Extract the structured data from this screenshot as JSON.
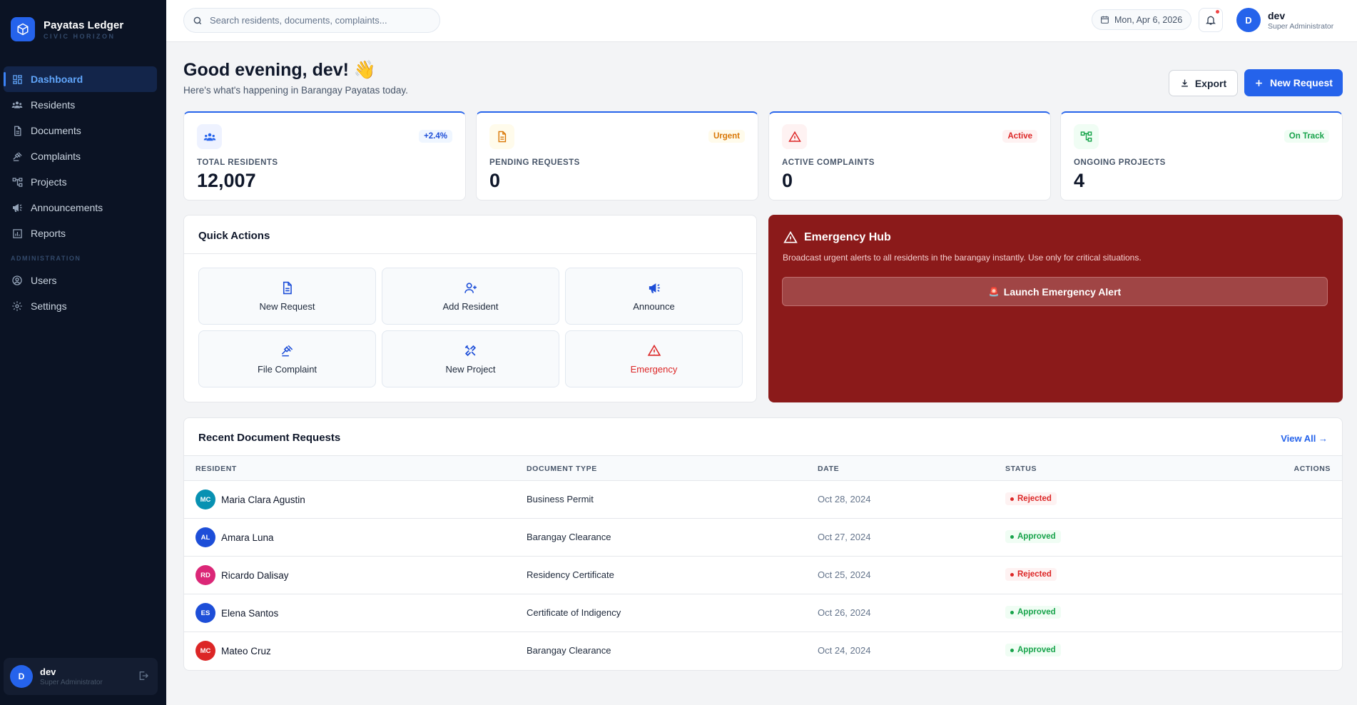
{
  "brand": {
    "name": "Payatas Ledger",
    "subtitle": "CIVIC HORIZON"
  },
  "sidebar": {
    "items": [
      {
        "label": "Dashboard",
        "icon": "dashboard-icon",
        "active": true
      },
      {
        "label": "Residents",
        "icon": "users-icon"
      },
      {
        "label": "Documents",
        "icon": "document-icon"
      },
      {
        "label": "Complaints",
        "icon": "gavel-icon"
      },
      {
        "label": "Projects",
        "icon": "hierarchy-icon"
      },
      {
        "label": "Announcements",
        "icon": "megaphone-icon"
      },
      {
        "label": "Reports",
        "icon": "chart-icon"
      }
    ],
    "admin_section": "ADMINISTRATION",
    "admin_items": [
      {
        "label": "Users",
        "icon": "user-circle-icon"
      },
      {
        "label": "Settings",
        "icon": "gear-icon"
      }
    ],
    "user": {
      "initial": "D",
      "name": "dev",
      "role": "Super Administrator"
    }
  },
  "topbar": {
    "search_placeholder": "Search residents, documents, complaints...",
    "date": "Mon, Apr 6, 2026",
    "user": {
      "initial": "D",
      "name": "dev",
      "role": "Super Administrator"
    }
  },
  "header": {
    "greeting": "Good evening, dev! 👋",
    "subtitle": "Here's what's happening in Barangay Payatas today.",
    "export_label": "Export",
    "new_request_label": "New Request"
  },
  "stats": [
    {
      "label": "TOTAL RESIDENTS",
      "value": "12,007",
      "badge": "+2.4%",
      "icon": "users-icon"
    },
    {
      "label": "PENDING REQUESTS",
      "value": "0",
      "badge": "Urgent",
      "icon": "document-icon"
    },
    {
      "label": "ACTIVE COMPLAINTS",
      "value": "0",
      "badge": "Active",
      "icon": "warning-icon"
    },
    {
      "label": "ONGOING PROJECTS",
      "value": "4",
      "badge": "On Track",
      "icon": "hierarchy-icon"
    }
  ],
  "quick_actions": {
    "title": "Quick Actions",
    "items": [
      {
        "label": "New Request",
        "icon": "document-icon"
      },
      {
        "label": "Add Resident",
        "icon": "user-plus-icon"
      },
      {
        "label": "Announce",
        "icon": "megaphone-icon"
      },
      {
        "label": "File Complaint",
        "icon": "gavel-icon"
      },
      {
        "label": "New Project",
        "icon": "tools-icon"
      },
      {
        "label": "Emergency",
        "icon": "warning-icon"
      }
    ]
  },
  "emergency": {
    "title": "Emergency Hub",
    "description": "Broadcast urgent alerts to all residents in the barangay instantly. Use only for critical situations.",
    "button_label": "Launch Emergency Alert",
    "button_emoji": "🚨"
  },
  "recent": {
    "title": "Recent Document Requests",
    "view_all": "View All →",
    "columns": [
      "RESIDENT",
      "DOCUMENT TYPE",
      "DATE",
      "STATUS",
      "ACTIONS"
    ],
    "rows": [
      {
        "initials": "MC",
        "color": "#0891b2",
        "name": "Maria Clara Agustin",
        "doc": "Business Permit",
        "date": "Oct 28, 2024",
        "status": "Rejected"
      },
      {
        "initials": "AL",
        "color": "#1d4ed8",
        "name": "Amara Luna",
        "doc": "Barangay Clearance",
        "date": "Oct 27, 2024",
        "status": "Approved"
      },
      {
        "initials": "RD",
        "color": "#db2777",
        "name": "Ricardo Dalisay",
        "doc": "Residency Certificate",
        "date": "Oct 25, 2024",
        "status": "Rejected"
      },
      {
        "initials": "ES",
        "color": "#1d4ed8",
        "name": "Elena Santos",
        "doc": "Certificate of Indigency",
        "date": "Oct 26, 2024",
        "status": "Approved"
      },
      {
        "initials": "MC",
        "color": "#dc2626",
        "name": "Mateo Cruz",
        "doc": "Barangay Clearance",
        "date": "Oct 24, 2024",
        "status": "Approved"
      }
    ]
  },
  "colors": {
    "accent": "#2563eb",
    "sidebar_bg": "#0b1324",
    "emergency_bg": "#8b1a1a",
    "approved": "#16a34a",
    "rejected": "#dc2626"
  }
}
